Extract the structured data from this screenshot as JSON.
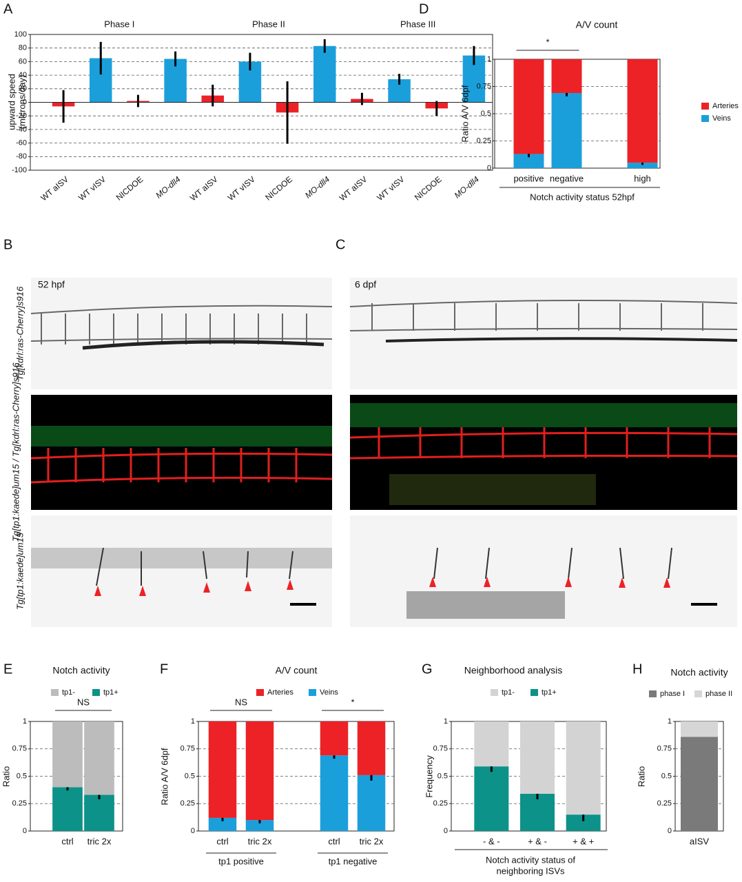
{
  "panels": [
    "A",
    "B",
    "C",
    "D",
    "E",
    "F",
    "G",
    "H"
  ],
  "images": {
    "B": {
      "stage": "52 hpf"
    },
    "C": {
      "stage": "6 dpf"
    },
    "rows": [
      "Tg[kdrl:ras-Cherry]s916",
      "Tg[tp1:kaede]um15 / Tg[kdrl:ras-Cherry]s916",
      "Tg[tp1:kaede]um15"
    ]
  },
  "chart_data": [
    {
      "type": "bar",
      "ylabel": [
        "upward speed",
        "(microns/day)"
      ],
      "groups": [
        "Phase I",
        "Phase II",
        "Phase III"
      ],
      "categories": [
        "WT aISV",
        "WT vISV",
        "NICDOE",
        "MO-dll4",
        "WT aISV",
        "WT vISV",
        "NICDOE",
        "MO-dll4",
        "WT aISV",
        "WT vISV",
        "NICDOE",
        "MO-dll4"
      ],
      "values": [
        -6,
        65,
        2,
        64,
        10,
        60,
        -15,
        83,
        5,
        34,
        -9,
        69
      ],
      "errors": [
        24,
        24,
        9,
        11,
        16,
        13,
        46,
        10,
        9,
        8,
        11,
        14
      ],
      "colors": [
        "#ec2227",
        "#1b9fdb",
        "#ec2227",
        "#1b9fdb",
        "#ec2227",
        "#1b9fdb",
        "#ec2227",
        "#1b9fdb",
        "#ec2227",
        "#1b9fdb",
        "#ec2227",
        "#1b9fdb"
      ],
      "ylim": [
        -100,
        100
      ],
      "yticks": [
        -100,
        -80,
        -60,
        -40,
        -20,
        0,
        20,
        40,
        60,
        80,
        100
      ],
      "grid": true
    },
    {
      "type": "stacked_bar",
      "title": "A/V count",
      "ylabel": "Ratio A/V 6dpf",
      "xlabel": [
        "Notch activity status 52hpf"
      ],
      "categories": [
        "positive",
        "negative",
        null,
        "high"
      ],
      "series": [
        {
          "name": "Arteries",
          "color": "#ec2227",
          "values": [
            0.87,
            0.31,
            null,
            0.95
          ]
        },
        {
          "name": "Veins",
          "color": "#1b9fdb",
          "values": [
            0.13,
            0.69,
            null,
            0.05
          ],
          "errors": [
            0.03,
            0.03,
            null,
            0.02
          ]
        }
      ],
      "annotations": [
        "*"
      ],
      "ylim": [
        0,
        1
      ],
      "yticks": [
        0,
        0.25,
        0.5,
        0.75,
        1
      ],
      "grid": true
    },
    {
      "type": "stacked_bar",
      "title": "Notch activity",
      "ylabel": "Ratio",
      "categories": [
        "ctrl",
        "tric 2x"
      ],
      "series": [
        {
          "name": "tp1-",
          "color": "#bcbcbc",
          "values": [
            0.6,
            0.67
          ]
        },
        {
          "name": "tp1+",
          "color": "#0c9289",
          "values": [
            0.4,
            0.33
          ],
          "errors": [
            0.03,
            0.04
          ]
        }
      ],
      "annotations": [
        "NS"
      ],
      "ylim": [
        0,
        1
      ],
      "yticks": [
        0,
        0.25,
        0.5,
        0.75,
        1
      ],
      "grid": true
    },
    {
      "type": "stacked_bar",
      "title": "A/V count",
      "ylabel": "Ratio A/V 6dpf",
      "groups": [
        "tp1 positive",
        "tp1 negative"
      ],
      "categories": [
        "ctrl",
        "tric 2x",
        null,
        "ctrl",
        "tric 2x"
      ],
      "series": [
        {
          "name": "Arteries",
          "color": "#ec2227",
          "values": [
            0.88,
            0.9,
            null,
            0.31,
            0.49
          ]
        },
        {
          "name": "Veins",
          "color": "#1b9fdb",
          "values": [
            0.12,
            0.1,
            null,
            0.69,
            0.51
          ],
          "errors": [
            0.03,
            0.03,
            null,
            0.03,
            0.05
          ]
        }
      ],
      "annotations": [
        "NS",
        "*"
      ],
      "ylim": [
        0,
        1
      ],
      "yticks": [
        0,
        0.25,
        0.5,
        0.75,
        1
      ],
      "grid": true
    },
    {
      "type": "stacked_bar",
      "title": "Neighborhood analysis",
      "ylabel": "Frequency",
      "xlabel": [
        "Notch activity status of",
        "neighboring ISVs"
      ],
      "categories": [
        "- & -",
        "+ & -",
        "+ & +"
      ],
      "series": [
        {
          "name": "tp1-",
          "color": "#d3d3d3",
          "values": [
            0.41,
            0.66,
            0.85
          ]
        },
        {
          "name": "tp1+",
          "color": "#0c9289",
          "values": [
            0.59,
            0.34,
            0.15
          ],
          "errors": [
            0.05,
            0.05,
            0.06
          ]
        }
      ],
      "ylim": [
        0,
        1
      ],
      "yticks": [
        0,
        0.25,
        0.5,
        0.75,
        1
      ],
      "grid": true
    },
    {
      "type": "stacked_bar",
      "title": "Notch activity",
      "ylabel": "Ratio",
      "categories": [
        "aISV"
      ],
      "series": [
        {
          "name": "phase I",
          "color": "#7a7a7a",
          "values": [
            0.86
          ]
        },
        {
          "name": "phase II",
          "color": "#d6d6d6",
          "values": [
            0.14
          ]
        }
      ],
      "ylim": [
        0,
        1
      ],
      "yticks": [
        0,
        0.25,
        0.5,
        0.75,
        1
      ],
      "grid": true
    }
  ]
}
